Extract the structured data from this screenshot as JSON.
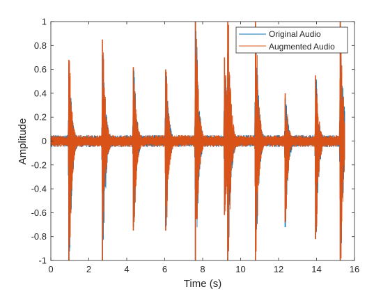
{
  "chart_data": {
    "type": "line",
    "title": "",
    "xlabel": "Time (s)",
    "ylabel": "Amplitude",
    "xlim": [
      0,
      16
    ],
    "ylim": [
      -1,
      1
    ],
    "xticks": [
      0,
      2,
      4,
      6,
      8,
      10,
      12,
      14,
      16
    ],
    "xtick_labels": [
      "0",
      "2",
      "4",
      "6",
      "8",
      "10",
      "12",
      "14",
      "16"
    ],
    "yticks": [
      -1,
      -0.8,
      -0.6,
      -0.4,
      -0.2,
      0,
      0.2,
      0.4,
      0.6,
      0.8,
      1
    ],
    "ytick_labels": [
      "-1",
      "-0.8",
      "-0.6",
      "-0.4",
      "-0.2",
      "0",
      "0.2",
      "0.4",
      "0.6",
      "0.8",
      "1"
    ],
    "grid": false,
    "legend_location": "top-right",
    "signal_time_range": [
      0,
      15.5
    ],
    "baseline_noise_amplitude": 0.05,
    "series": [
      {
        "name": "Original Audio",
        "color": "#0072BD",
        "events": [
          {
            "t": 0.95,
            "pos": 0.65,
            "neg": -1.0
          },
          {
            "t": 2.72,
            "pos": 0.72,
            "neg": -1.0
          },
          {
            "t": 4.35,
            "pos": 0.6,
            "neg": -0.72
          },
          {
            "t": 6.05,
            "pos": 0.58,
            "neg": -0.72
          },
          {
            "t": 7.62,
            "pos": 1.0,
            "neg": -1.0
          },
          {
            "t": 9.15,
            "pos": 0.68,
            "neg": -0.6
          },
          {
            "t": 9.32,
            "pos": 0.74,
            "neg": -1.0
          },
          {
            "t": 10.78,
            "pos": 0.98,
            "neg": -1.0
          },
          {
            "t": 12.35,
            "pos": 0.36,
            "neg": -0.72
          },
          {
            "t": 13.95,
            "pos": 0.52,
            "neg": -0.82
          },
          {
            "t": 15.25,
            "pos": 1.0,
            "neg": -1.0
          }
        ]
      },
      {
        "name": "Augmented Audio",
        "color": "#D95319",
        "events": [
          {
            "t": 0.95,
            "pos": 0.68,
            "neg": -1.0
          },
          {
            "t": 2.72,
            "pos": 0.85,
            "neg": -1.0
          },
          {
            "t": 4.35,
            "pos": 0.62,
            "neg": -0.75
          },
          {
            "t": 6.05,
            "pos": 0.6,
            "neg": -0.75
          },
          {
            "t": 7.62,
            "pos": 1.0,
            "neg": -1.0
          },
          {
            "t": 9.15,
            "pos": 0.7,
            "neg": -0.62
          },
          {
            "t": 9.32,
            "pos": 1.0,
            "neg": -1.0
          },
          {
            "t": 10.78,
            "pos": 1.0,
            "neg": -1.0
          },
          {
            "t": 12.35,
            "pos": 0.4,
            "neg": -0.68
          },
          {
            "t": 13.95,
            "pos": 0.55,
            "neg": -0.82
          },
          {
            "t": 15.25,
            "pos": 1.0,
            "neg": -1.0
          }
        ]
      }
    ]
  }
}
